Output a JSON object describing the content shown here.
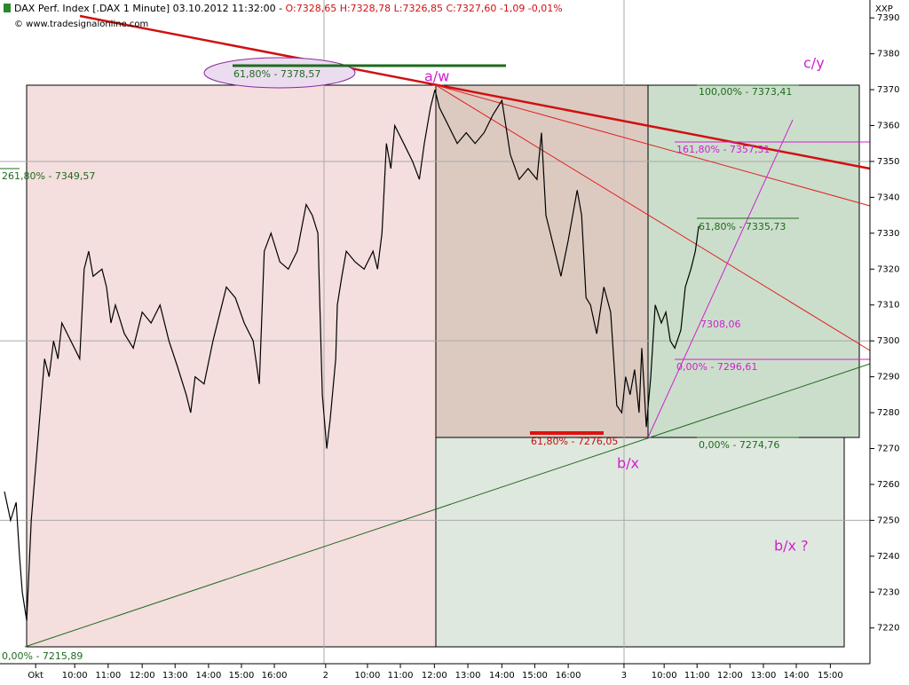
{
  "chart_data": {
    "type": "line",
    "title": "DAX Perf. Index [.DAX  1 Minute] 03.10.2012 11:32:00 -",
    "ohlc": "O:7328,65 H:7328,78 L:7326,85 C:7327,60 -1,09 -0,01%",
    "source": "© www.tradesignalonline.com",
    "axis_label": "XXP",
    "ylim": [
      7214,
      7394
    ],
    "yticks": [
      7220,
      7230,
      7240,
      7250,
      7260,
      7270,
      7280,
      7290,
      7300,
      7310,
      7320,
      7330,
      7340,
      7350,
      7360,
      7370,
      7380,
      7390
    ],
    "ygrid": [
      7250,
      7300,
      7350
    ],
    "xlim": [
      0,
      1560
    ],
    "xticks": [
      {
        "value": 56,
        "label": "Okt"
      },
      {
        "value": 126,
        "label": "10:00"
      },
      {
        "value": 186,
        "label": "11:00"
      },
      {
        "value": 247,
        "label": "12:00"
      },
      {
        "value": 306,
        "label": "13:00"
      },
      {
        "value": 366,
        "label": "14:00"
      },
      {
        "value": 425,
        "label": "15:00"
      },
      {
        "value": 484,
        "label": "16:00"
      },
      {
        "value": 576,
        "label": "2"
      },
      {
        "value": 651,
        "label": "10:00"
      },
      {
        "value": 710,
        "label": "11:00"
      },
      {
        "value": 771,
        "label": "12:00"
      },
      {
        "value": 831,
        "label": "13:00"
      },
      {
        "value": 892,
        "label": "14:00"
      },
      {
        "value": 951,
        "label": "15:00"
      },
      {
        "value": 1011,
        "label": "16:00"
      },
      {
        "value": 1111,
        "label": "3"
      },
      {
        "value": 1183,
        "label": "10:00"
      },
      {
        "value": 1242,
        "label": "11:00"
      },
      {
        "value": 1301,
        "label": "12:00"
      },
      {
        "value": 1361,
        "label": "13:00"
      },
      {
        "value": 1420,
        "label": "14:00"
      },
      {
        "value": 1481,
        "label": "15:00"
      }
    ],
    "series": [
      {
        "color": "#000000",
        "x": [
          0,
          11,
          21,
          27,
          32,
          40,
          48,
          56,
          64,
          72,
          80,
          88,
          96,
          103,
          119,
          135,
          143,
          151,
          159,
          175,
          183,
          191,
          199,
          215,
          231,
          247,
          263,
          279,
          295,
          310,
          326,
          334,
          342,
          358,
          374,
          390,
          398,
          414,
          430,
          446,
          457,
          466,
          478,
          494,
          509,
          525,
          541,
          552,
          562,
          570,
          578,
          584,
          594,
          597,
          605,
          613,
          629,
          645,
          661,
          669,
          677,
          685,
          693,
          700,
          716,
          732,
          744,
          753,
          764,
          772,
          780,
          796,
          812,
          828,
          844,
          860,
          876,
          892,
          907,
          923,
          939,
          955,
          963,
          971,
          987,
          998,
          1011,
          1027,
          1035,
          1043,
          1051,
          1062,
          1075,
          1087,
          1098,
          1107,
          1114,
          1122,
          1130,
          1138,
          1143,
          1151,
          1159,
          1167,
          1178,
          1186,
          1194,
          1202,
          1213,
          1221,
          1231,
          1239,
          1245
        ],
        "values": [
          7258,
          7250,
          7255,
          7240,
          7230,
          7222,
          7250,
          7265,
          7280,
          7295,
          7290,
          7300,
          7295,
          7305,
          7300,
          7295,
          7320,
          7325,
          7318,
          7320,
          7315,
          7305,
          7310,
          7302,
          7298,
          7308,
          7305,
          7310,
          7300,
          7293,
          7285,
          7280,
          7290,
          7288,
          7300,
          7310,
          7315,
          7312,
          7305,
          7300,
          7288,
          7325,
          7330,
          7322,
          7320,
          7325,
          7338,
          7335,
          7330,
          7285,
          7270,
          7278,
          7295,
          7310,
          7318,
          7325,
          7322,
          7320,
          7325,
          7320,
          7330,
          7355,
          7348,
          7360,
          7355,
          7350,
          7345,
          7355,
          7365,
          7370,
          7365,
          7360,
          7355,
          7358,
          7355,
          7358,
          7363,
          7367,
          7352,
          7345,
          7348,
          7345,
          7358,
          7335,
          7325,
          7318,
          7328,
          7342,
          7335,
          7312,
          7310,
          7302,
          7315,
          7308,
          7282,
          7280,
          7290,
          7285,
          7292,
          7280,
          7298,
          7276,
          7290,
          7310,
          7305,
          7308,
          7300,
          7298,
          7303,
          7315,
          7320,
          7325,
          7332
        ]
      }
    ],
    "annotations": [
      "61,80% - 7378,57",
      "a/w",
      "c/y",
      "100,00% - 7373,41",
      "161,80% - 7357,31",
      "261,80% - 7349,57",
      "61,80% - 7335,73",
      "7308,06",
      "0,00% - 7296,61",
      "61,80% - 7276,05",
      "0,00% - 7274,76",
      "b/x",
      "b/x ?",
      "0,00% - 7215,89"
    ]
  }
}
